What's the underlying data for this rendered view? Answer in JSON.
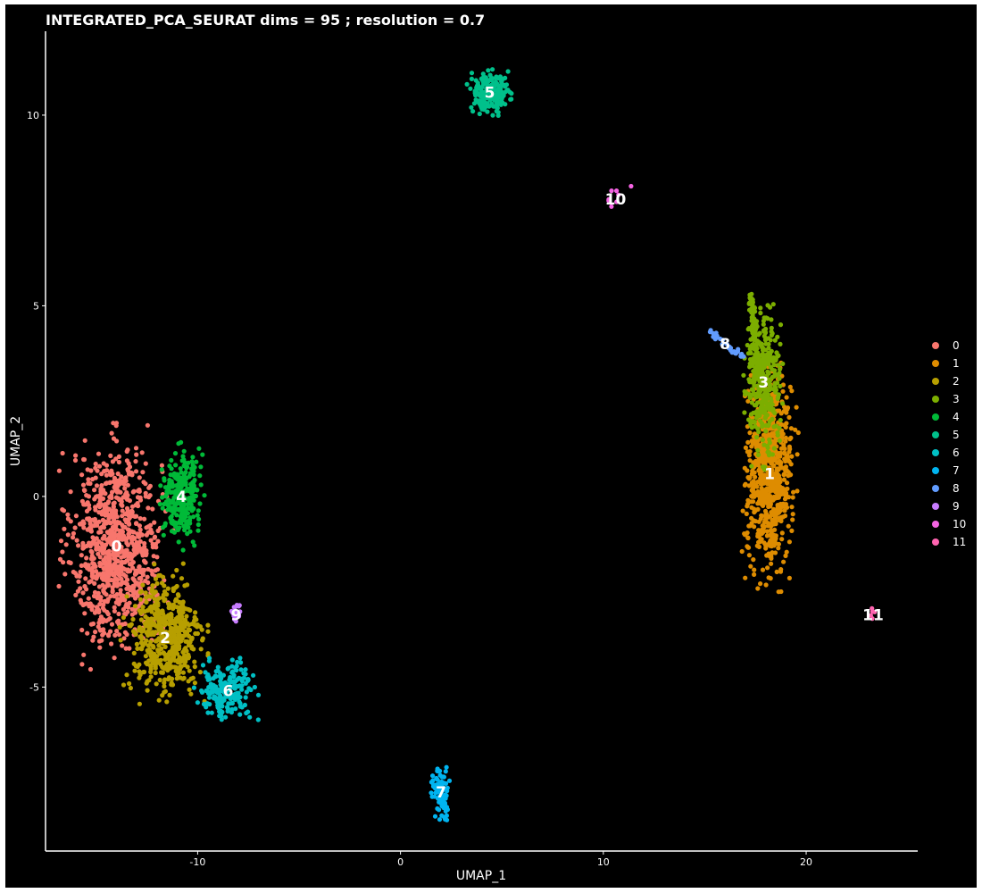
{
  "chart_data": {
    "type": "scatter",
    "title": "INTEGRATED_PCA_SEURAT dims =  95 ; resolution = 0.7",
    "xlabel": "UMAP_1",
    "ylabel": "UMAP_2",
    "xlim": [
      -17.5,
      25.5
    ],
    "ylim": [
      -9.3,
      12.2
    ],
    "x_ticks": [
      -10,
      0,
      10,
      20
    ],
    "y_ticks": [
      -5,
      0,
      5,
      10
    ],
    "grid": false,
    "background": "#000000",
    "axis_color": "#ffffff",
    "legend_position": "right",
    "legend": [
      "0",
      "1",
      "2",
      "3",
      "4",
      "5",
      "6",
      "7",
      "8",
      "9",
      "10",
      "11"
    ],
    "series": [
      {
        "name": "0",
        "color": "#F8766D",
        "center": [
          -14.0,
          -1.3
        ],
        "spread": [
          1.1,
          1.25
        ],
        "cluster_label": "0"
      },
      {
        "name": "1",
        "color": "#DE8C00",
        "center": [
          18.2,
          0.6
        ],
        "spread": [
          0.55,
          1.2
        ],
        "cluster_label": "1"
      },
      {
        "name": "2",
        "color": "#B79F00",
        "center": [
          -11.6,
          -3.7
        ],
        "spread": [
          0.9,
          0.75
        ],
        "cluster_label": "2"
      },
      {
        "name": "3",
        "color": "#7CAE00",
        "center": [
          17.9,
          3.0
        ],
        "spread": [
          0.45,
          0.9
        ],
        "cluster_label": "3"
      },
      {
        "name": "4",
        "color": "#00BA38",
        "center": [
          -10.8,
          0.0
        ],
        "spread": [
          0.45,
          0.55
        ],
        "cluster_label": "4"
      },
      {
        "name": "5",
        "color": "#00C08B",
        "center": [
          4.4,
          10.6
        ],
        "spread": [
          0.45,
          0.25
        ],
        "cluster_label": "5"
      },
      {
        "name": "6",
        "color": "#00BFC4",
        "center": [
          -8.5,
          -5.1
        ],
        "spread": [
          0.7,
          0.35
        ],
        "cluster_label": "6"
      },
      {
        "name": "7",
        "color": "#00B4F0",
        "center": [
          2.0,
          -7.75
        ],
        "spread": [
          0.22,
          0.3
        ],
        "cluster_label": "7"
      },
      {
        "name": "8",
        "color": "#619CFF",
        "center": [
          16.0,
          4.0
        ],
        "spread": [
          0.6,
          0.2
        ],
        "cluster_label": "8"
      },
      {
        "name": "9",
        "color": "#C77CFF",
        "center": [
          -8.1,
          -3.1
        ],
        "spread": [
          0.15,
          0.15
        ],
        "cluster_label": "9"
      },
      {
        "name": "10",
        "color": "#F564E3",
        "center": [
          10.6,
          7.8
        ],
        "spread": [
          0.3,
          0.15
        ],
        "cluster_label": "10"
      },
      {
        "name": "11",
        "color": "#FF64B0",
        "center": [
          23.3,
          -3.1
        ],
        "spread": [
          0.08,
          0.08
        ],
        "cluster_label": "11"
      }
    ]
  }
}
